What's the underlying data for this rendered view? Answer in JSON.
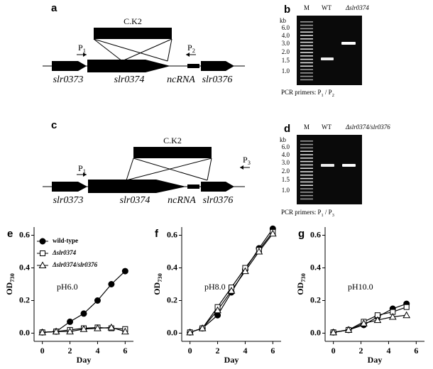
{
  "panels": {
    "a": {
      "letter": "a",
      "insert": "C.K2",
      "genes": [
        "slr0373",
        "slr0374",
        "ncRNA",
        "slr0376"
      ],
      "primers": [
        [
          "P",
          "1"
        ],
        [
          "P",
          "2"
        ]
      ]
    },
    "b": {
      "letter": "b",
      "lanes": [
        "M",
        "WT",
        "Δslr0374"
      ],
      "unit": "kb",
      "sizes": [
        "6.0",
        "4.0",
        "3.0",
        "2.0",
        "1.5",
        "1.0"
      ],
      "caption": [
        "PCR primers: P",
        "1",
        " / P",
        "2"
      ]
    },
    "c": {
      "letter": "c",
      "insert": "C.K2",
      "genes": [
        "slr0373",
        "slr0374",
        "ncRNA",
        "slr0376"
      ],
      "primers": [
        [
          "P",
          "1"
        ],
        [
          "P",
          "3"
        ]
      ]
    },
    "d": {
      "letter": "d",
      "lanes": [
        "M",
        "WT",
        "Δslr0374/slr0376"
      ],
      "unit": "kb",
      "sizes": [
        "6.0",
        "4.0",
        "3.0",
        "2.0",
        "1.5",
        "1.0"
      ],
      "caption": [
        "PCR primers: P",
        "1",
        " / P",
        "3"
      ]
    }
  },
  "chart_data": [
    {
      "type": "line",
      "letter": "e",
      "annotation": "pH6.0",
      "x_label": "Day",
      "y_label": [
        "OD",
        "730"
      ],
      "xlim": [
        -0.6,
        6.6
      ],
      "ylim": [
        -0.05,
        0.65
      ],
      "xticks": [
        0,
        2,
        4,
        6
      ],
      "yticks": [
        {
          "value": 0,
          "label": "0.0"
        },
        {
          "value": 0.2,
          "label": "0.2"
        },
        {
          "value": 0.4,
          "label": "0.4"
        },
        {
          "value": 0.6,
          "label": "0.6"
        }
      ],
      "x": [
        0,
        1,
        2,
        3,
        4,
        5,
        6
      ],
      "legend": "upper left",
      "series": [
        {
          "name": "wild-type",
          "marker": "circle",
          "color": "#000000",
          "values": [
            0.005,
            0.01,
            0.07,
            0.12,
            0.2,
            0.3,
            0.38
          ]
        },
        {
          "name": "Δslr0374",
          "marker": "square",
          "color": "#000000",
          "values": [
            0.005,
            0.01,
            0.02,
            0.03,
            0.035,
            0.03,
            0.025
          ]
        },
        {
          "name": "Δslr0374/slr0376",
          "marker": "triangle",
          "color": "#000000",
          "values": [
            0.005,
            0.01,
            0.01,
            0.025,
            0.03,
            0.035,
            0.01
          ]
        }
      ]
    },
    {
      "type": "line",
      "letter": "f",
      "annotation": "pH8.0",
      "x_label": "Day",
      "y_label": [
        "OD",
        "730"
      ],
      "xlim": [
        -0.6,
        6.6
      ],
      "ylim": [
        -0.05,
        0.65
      ],
      "xticks": [
        0,
        2,
        4,
        6
      ],
      "yticks": [
        {
          "value": 0,
          "label": "0.0"
        },
        {
          "value": 0.2,
          "label": "0.2"
        },
        {
          "value": 0.4,
          "label": "0.4"
        },
        {
          "value": 0.6,
          "label": "0.6"
        }
      ],
      "x": [
        0,
        0.9,
        2,
        3,
        4,
        5,
        6
      ],
      "series": [
        {
          "marker": "circle",
          "color": "#000000",
          "values": [
            0.005,
            0.03,
            0.11,
            0.25,
            0.39,
            0.52,
            0.64
          ]
        },
        {
          "marker": "square",
          "color": "#000000",
          "values": [
            0.005,
            0.03,
            0.16,
            0.28,
            0.4,
            0.51,
            0.62
          ]
        },
        {
          "marker": "triangle",
          "color": "#000000",
          "values": [
            0.005,
            0.03,
            0.14,
            0.26,
            0.38,
            0.5,
            0.61
          ]
        }
      ]
    },
    {
      "type": "line",
      "letter": "g",
      "annotation": "pH10.0",
      "x_label": "Day",
      "y_label": [
        "OD",
        "730"
      ],
      "xlim": [
        -0.6,
        6.6
      ],
      "ylim": [
        -0.05,
        0.65
      ],
      "xticks": [
        0,
        2,
        4,
        6
      ],
      "yticks": [
        {
          "value": 0,
          "label": "0.0"
        },
        {
          "value": 0.2,
          "label": "0.2"
        },
        {
          "value": 0.4,
          "label": "0.4"
        },
        {
          "value": 0.6,
          "label": "0.6"
        }
      ],
      "x": [
        0,
        1.1,
        2.2,
        3.2,
        4.3,
        5.3
      ],
      "series": [
        {
          "marker": "circle",
          "color": "#000000",
          "values": [
            0.005,
            0.02,
            0.05,
            0.1,
            0.15,
            0.18
          ]
        },
        {
          "marker": "square",
          "color": "#000000",
          "values": [
            0.005,
            0.02,
            0.07,
            0.11,
            0.13,
            0.16
          ]
        },
        {
          "marker": "triangle",
          "color": "#000000",
          "values": [
            0.005,
            0.02,
            0.06,
            0.08,
            0.1,
            0.11
          ]
        }
      ]
    }
  ]
}
